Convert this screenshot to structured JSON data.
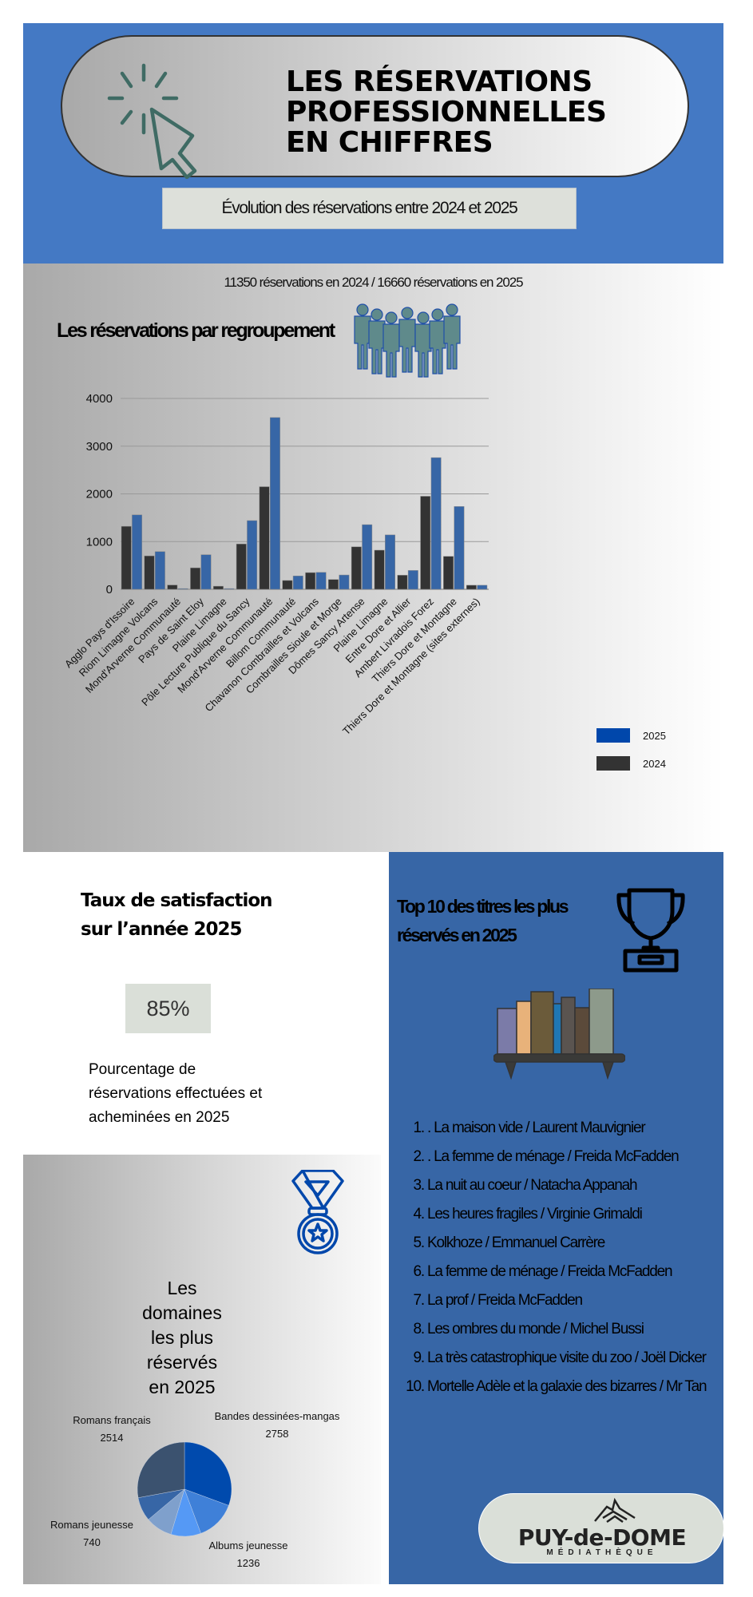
{
  "header": {
    "title_lines": [
      "LES RÉSERVATIONS",
      "PROFESSIONNELLES",
      "EN CHIFFRES"
    ],
    "subtitle": "Évolution des réservations entre 2024 et 2025",
    "icon": "cursor-click-icon"
  },
  "summary": {
    "totals": "11350 réservations en 2024 / 16660 réservations en 2025",
    "section_title": "Les réservations par regroupement",
    "icon": "people-group-icon"
  },
  "chart_data": [
    {
      "type": "bar",
      "title": "",
      "xlabel": "",
      "ylabel": "",
      "ylim": [
        0,
        4000
      ],
      "yticks": [
        "0",
        "1000",
        "2000",
        "3000",
        "4000"
      ],
      "grid": true,
      "legend_position": "bottom-right",
      "categories": [
        "Agglo Pays d'Issoire",
        "Riom Limagne Volcans",
        "Mond'Arverne Communauté",
        "Pays de Saint Eloy",
        "Plaine Limagne",
        "Pôle Lecture Publique du Sancy",
        "Mond'Arverne Communauté",
        "Billom Communauté",
        "Chavanon Combrailles et Volcans",
        "Combrailles Sioule et Morge",
        "Dômes Sancy Artense",
        "Plaine Limagne",
        "Entre Dore et Allier",
        "Ambert Livradois Forez",
        "Thiers Dore et Montagne",
        "Thiers Dore et Montagne (sites externes)"
      ],
      "series": [
        {
          "name": "2024",
          "color": "#333333",
          "values": [
            1320,
            700,
            90,
            450,
            65,
            950,
            2150,
            185,
            350,
            205,
            890,
            820,
            295,
            1950,
            690,
            85
          ]
        },
        {
          "name": "2025",
          "color": "#3766a6",
          "values": [
            1560,
            790,
            15,
            725,
            15,
            1440,
            3600,
            280,
            355,
            300,
            1355,
            1140,
            395,
            2760,
            1735,
            85
          ]
        }
      ],
      "legend": [
        {
          "label": "2025",
          "color": "#0047ab"
        },
        {
          "label": "2024",
          "color": "#333333"
        }
      ]
    },
    {
      "type": "pie",
      "title": "Les domaines les plus réservés en 2025",
      "slices": [
        {
          "label": "Bandes dessinées-mangas",
          "value": 2758,
          "color": "#004aad"
        },
        {
          "label": "Albums jeunesse",
          "value": 1236,
          "color": "#3f80d8"
        },
        {
          "label": "",
          "value": 930,
          "color": "#5599f5"
        },
        {
          "label": "",
          "value": 830,
          "color": "#7fa0cc"
        },
        {
          "label": "Romans jeunesse",
          "value": 740,
          "color": "#3766a6"
        },
        {
          "label": "Romans français",
          "value": 2514,
          "color": "#3b526f"
        }
      ]
    }
  ],
  "satisfaction": {
    "title_lines": [
      "Taux de satisfaction",
      "sur l’année 2025"
    ],
    "value": "85%",
    "description_lines": [
      "Pourcentage de",
      "réservations effectuées et",
      "acheminées en 2025"
    ]
  },
  "top10": {
    "title_lines": [
      "Top 10 des titres les plus",
      "réservés en 2025"
    ],
    "icons": [
      "trophy-icon",
      "bookshelf-icon"
    ],
    "items": [
      {
        "num": "1.",
        "text": ". La maison vide / Laurent Mauvignier"
      },
      {
        "num": "2.",
        "text": ". La femme de ménage / Freida McFadden"
      },
      {
        "num": "3.",
        "text": "La nuit au coeur /  Natacha Appanah"
      },
      {
        "num": "4.",
        "text": "Les heures fragiles / Virginie Grimaldi"
      },
      {
        "num": "5.",
        "text": "Kolkhoze / Emmanuel Carrère"
      },
      {
        "num": "6.",
        "text": "La femme de ménage / Freida McFadden"
      },
      {
        "num": "7.",
        "text": "La prof / Freida McFadden"
      },
      {
        "num": "8.",
        "text": "Les ombres du monde / Michel Bussi"
      },
      {
        "num": "9.",
        "text": "La très catastrophique visite du zoo / Joël Dicker"
      },
      {
        "num": "10.",
        "text": "Mortelle Adèle et la galaxie des bizarres / Mr Tan"
      }
    ]
  },
  "domains": {
    "title_lines": [
      "Les",
      "domaines",
      "les plus",
      "réservés",
      "en 2025"
    ],
    "icon": "medal-icon"
  },
  "logo": {
    "line1": "PUY-de-DOME",
    "line2": "MÉDIATHÈQUE"
  }
}
